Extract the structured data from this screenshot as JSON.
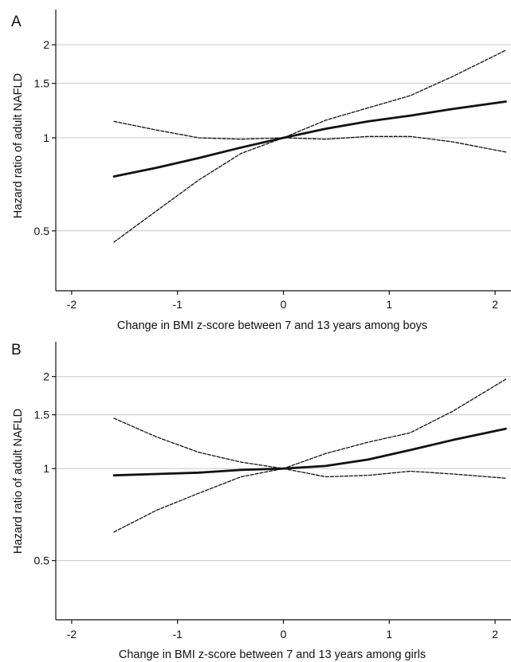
{
  "chart_data": [
    {
      "type": "line",
      "panel_label": "A",
      "xlabel": "Change in BMI z-score between 7 and 13 years among boys",
      "ylabel": "Hazard ratio of adult NAFLD",
      "y_scale": "log",
      "xlim": [
        -2.15,
        2.15
      ],
      "ylim": [
        0.32,
        2.6
      ],
      "x_ticks": [
        -2,
        -1,
        0,
        1,
        2
      ],
      "x_tick_labels": [
        "-2",
        "-1",
        "0",
        "1",
        "2"
      ],
      "y_ticks": [
        0.5,
        1,
        1.5,
        2
      ],
      "y_tick_labels": [
        "0.5",
        "1",
        "1.5",
        "2"
      ],
      "grid": "horizontal",
      "series": [
        {
          "role": "estimate",
          "style": "solid",
          "x": [
            -1.6,
            -1.2,
            -0.8,
            -0.4,
            0,
            0.4,
            0.8,
            1.2,
            1.6,
            2.1
          ],
          "y": [
            0.75,
            0.8,
            0.86,
            0.93,
            1.0,
            1.07,
            1.13,
            1.18,
            1.24,
            1.31
          ]
        },
        {
          "role": "upper bound",
          "style": "dashed",
          "x": [
            -1.6,
            -1.2,
            -0.8,
            -0.4,
            0,
            0.4,
            0.8,
            1.2,
            1.6,
            2.1
          ],
          "y": [
            1.13,
            1.06,
            1.0,
            0.99,
            1.0,
            1.14,
            1.25,
            1.37,
            1.58,
            1.92
          ]
        },
        {
          "role": "lower bound",
          "style": "dashed",
          "x": [
            -1.6,
            -1.2,
            -0.8,
            -0.4,
            0,
            0.4,
            0.8,
            1.2,
            1.6,
            2.1
          ],
          "y": [
            0.46,
            0.58,
            0.73,
            0.89,
            1.0,
            0.99,
            1.01,
            1.01,
            0.97,
            0.9
          ]
        }
      ]
    },
    {
      "type": "line",
      "panel_label": "B",
      "xlabel": "Change in BMI z-score between 7 and 13 years among girls",
      "ylabel": "Hazard ratio of adult NAFLD",
      "y_scale": "log",
      "xlim": [
        -2.15,
        2.15
      ],
      "ylim": [
        0.32,
        2.6
      ],
      "x_ticks": [
        -2,
        -1,
        0,
        1,
        2
      ],
      "x_tick_labels": [
        "-2",
        "-1",
        "0",
        "1",
        "2"
      ],
      "y_ticks": [
        0.5,
        1,
        1.5,
        2
      ],
      "y_tick_labels": [
        "0.5",
        "1",
        "1.5",
        "2"
      ],
      "grid": "horizontal",
      "series": [
        {
          "role": "estimate",
          "style": "solid",
          "x": [
            -1.6,
            -1.2,
            -0.8,
            -0.4,
            0,
            0.4,
            0.8,
            1.2,
            1.6,
            2.1
          ],
          "y": [
            0.95,
            0.96,
            0.97,
            0.99,
            1.0,
            1.02,
            1.07,
            1.15,
            1.24,
            1.35
          ]
        },
        {
          "role": "upper bound",
          "style": "dashed",
          "x": [
            -1.6,
            -1.2,
            -0.8,
            -0.4,
            0,
            0.4,
            0.8,
            1.2,
            1.6,
            2.1
          ],
          "y": [
            1.46,
            1.27,
            1.13,
            1.05,
            1.0,
            1.12,
            1.22,
            1.31,
            1.54,
            1.96
          ]
        },
        {
          "role": "lower bound",
          "style": "dashed",
          "x": [
            -1.6,
            -1.2,
            -0.8,
            -0.4,
            0,
            0.4,
            0.8,
            1.2,
            1.6,
            2.1
          ],
          "y": [
            0.62,
            0.73,
            0.83,
            0.94,
            1.0,
            0.94,
            0.95,
            0.98,
            0.96,
            0.93
          ]
        }
      ]
    }
  ]
}
